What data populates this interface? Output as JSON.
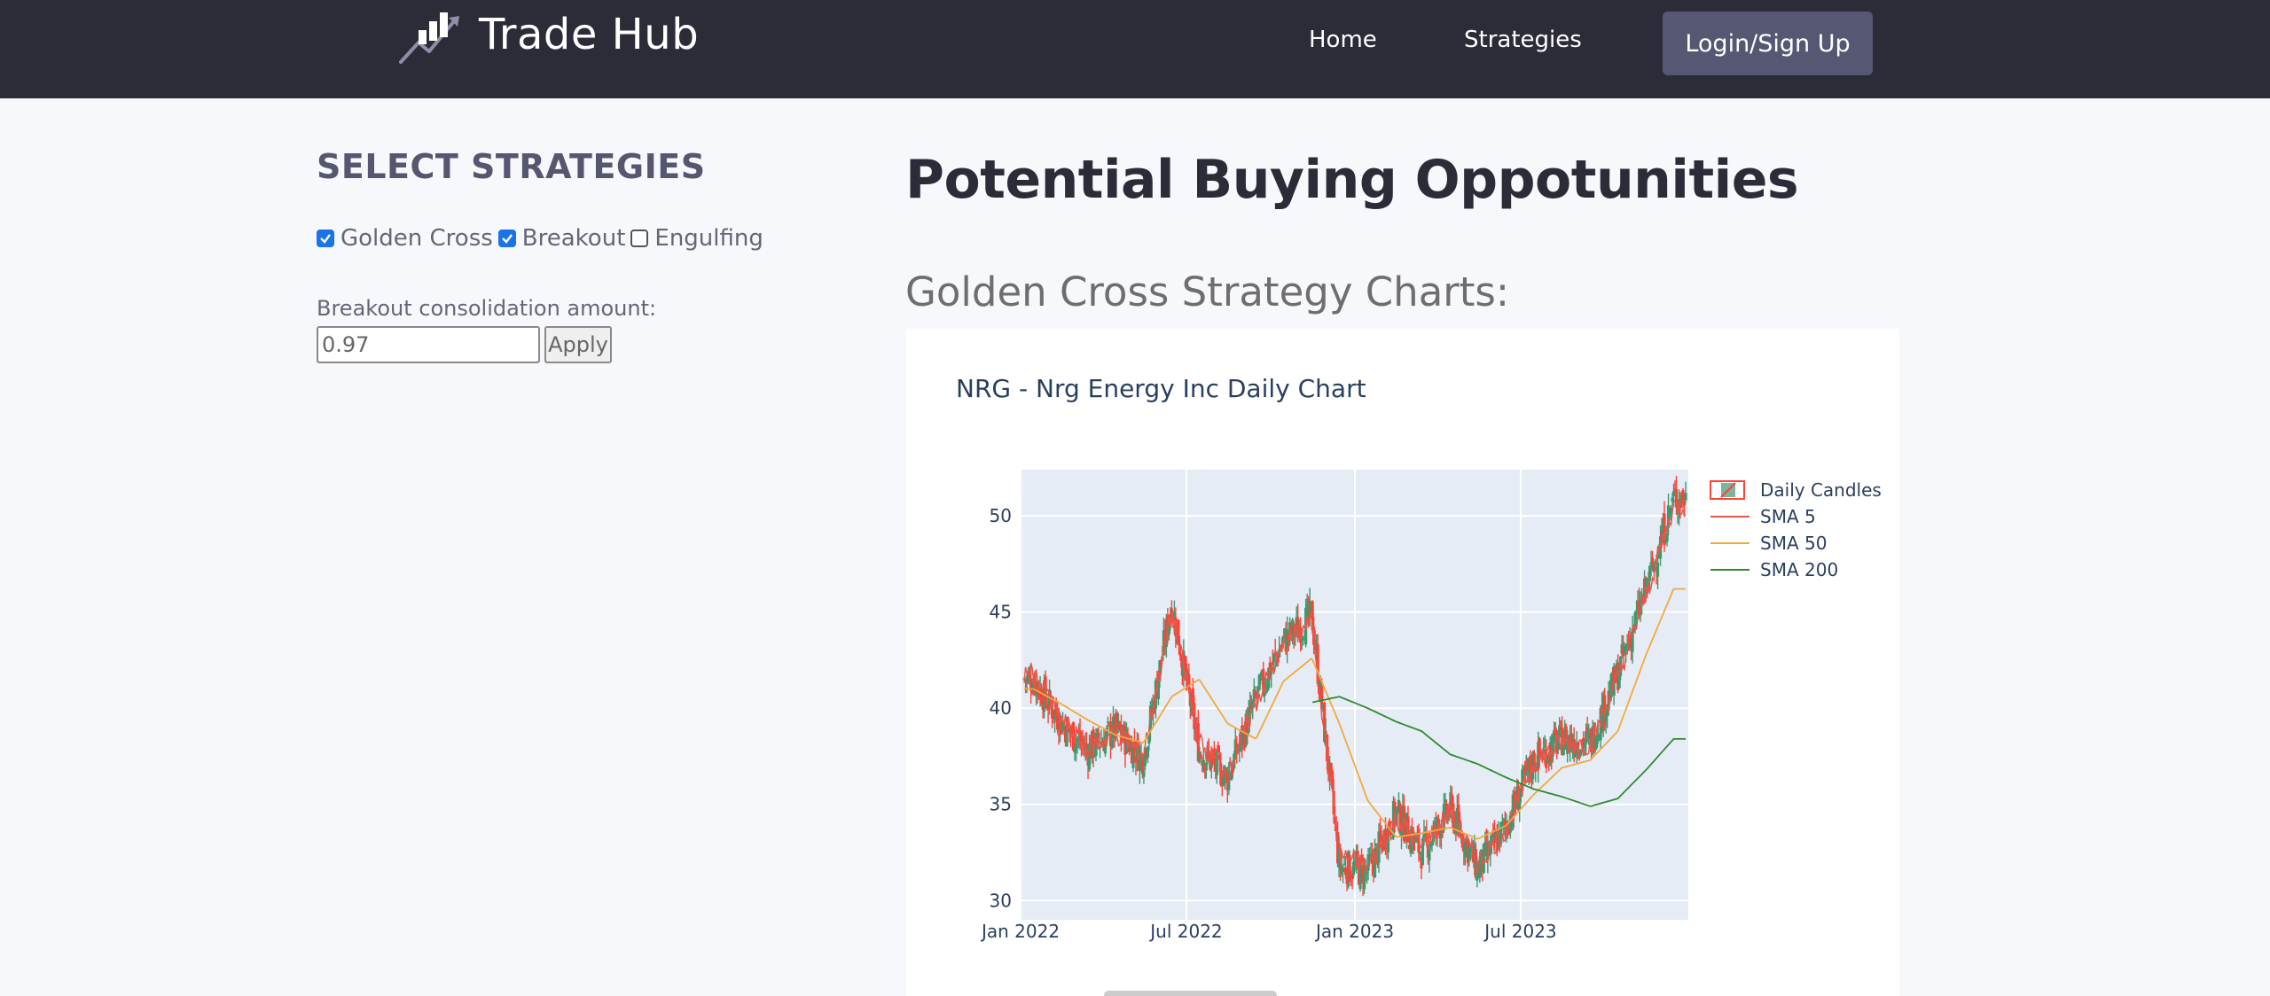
{
  "navbar": {
    "brand": "Trade Hub",
    "links": [
      {
        "label": "Home"
      },
      {
        "label": "Strategies"
      }
    ],
    "login_label": "Login/Sign Up"
  },
  "sidebar": {
    "title": "SELECT STRATEGIES",
    "strategies": [
      {
        "label": "Golden Cross",
        "checked": true
      },
      {
        "label": "Breakout",
        "checked": true
      },
      {
        "label": "Engulfing",
        "checked": false
      }
    ],
    "consolidation_label": "Breakout consolidation amount:",
    "consolidation_value": "0.97",
    "apply_label": "Apply"
  },
  "main": {
    "title": "Potential Buying Oppotunities",
    "section_title": "Golden Cross Strategy Charts:"
  },
  "colors": {
    "navbar_bg": "#2b2c38",
    "page_bg": "#f7f8fc",
    "plot_bg": "#e5ecf6",
    "increasing": "#3d9970",
    "decreasing": "#ff4136",
    "sma5": "#e8564a",
    "sma50": "#f2a93b",
    "sma200": "#2e8b2e",
    "checkbox": "#1a73e8"
  },
  "chart_data": {
    "type": "line",
    "title": "NRG - Nrg Energy Inc Daily Chart",
    "xlabel": "",
    "ylabel": "",
    "x_ticks": [
      "Jan 2022",
      "Jul 2022",
      "Jan 2023",
      "Jul 2023"
    ],
    "y_ticks": [
      30,
      35,
      40,
      45,
      50
    ],
    "ylim": [
      29,
      52.4
    ],
    "xlim": [
      "2022-01-01",
      "2023-12-31"
    ],
    "grid": true,
    "legend_position": "top-right",
    "x": [
      "2022-01",
      "2022-02",
      "2022-03",
      "2022-04",
      "2022-05",
      "2022-06",
      "2022-07",
      "2022-08",
      "2022-09",
      "2022-10",
      "2022-11",
      "2022-12",
      "2023-01",
      "2023-02",
      "2023-03",
      "2023-04",
      "2023-05",
      "2023-06",
      "2023-07",
      "2023-08",
      "2023-09",
      "2023-10",
      "2023-11",
      "2023-12"
    ],
    "series": [
      {
        "name": "Daily Candles",
        "kind": "candlestick",
        "close": [
          41.5,
          39.2,
          37.8,
          38.9,
          37.4,
          45.5,
          37.8,
          36.4,
          40.5,
          43.5,
          44.8,
          31.8,
          31.5,
          34.6,
          32.5,
          34.8,
          31.6,
          33.9,
          37.3,
          38.4,
          38.2,
          41.8,
          46.2,
          50.9
        ]
      },
      {
        "name": "SMA 5",
        "kind": "line",
        "values": [
          41.8,
          39.4,
          37.9,
          38.7,
          37.6,
          45.0,
          38.2,
          36.6,
          40.3,
          43.2,
          44.5,
          32.4,
          31.7,
          34.3,
          32.8,
          34.6,
          31.9,
          33.7,
          37.1,
          38.2,
          38.1,
          41.5,
          45.9,
          50.5
        ]
      },
      {
        "name": "SMA 50",
        "kind": "line",
        "values": [
          41.0,
          40.2,
          39.4,
          38.6,
          38.2,
          40.6,
          41.5,
          39.2,
          38.4,
          41.4,
          42.6,
          39.2,
          35.2,
          33.3,
          33.5,
          33.8,
          33.2,
          33.9,
          35.5,
          36.9,
          37.3,
          38.8,
          42.8,
          46.2
        ]
      },
      {
        "name": "SMA 200",
        "kind": "line",
        "values": [
          null,
          null,
          null,
          null,
          null,
          null,
          null,
          null,
          null,
          null,
          40.3,
          40.6,
          40.0,
          39.3,
          38.8,
          37.6,
          37.1,
          36.4,
          35.8,
          35.4,
          34.9,
          35.3,
          36.8,
          38.4
        ]
      }
    ]
  }
}
